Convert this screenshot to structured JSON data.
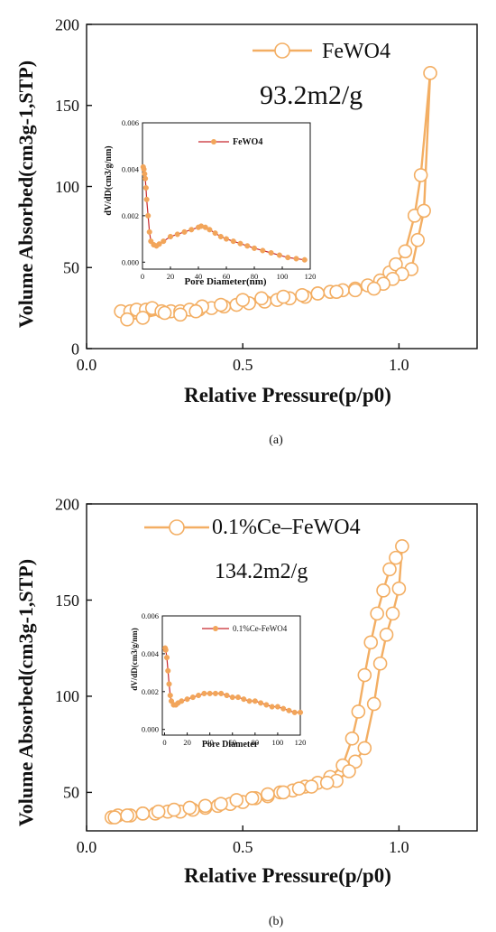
{
  "colors": {
    "series": "#F3AE63",
    "inset_line": "#C8282D",
    "inset_marker": "#F2A55A",
    "axis": "#111111"
  },
  "chart_data": [
    {
      "type": "line",
      "panel_label": "(a)",
      "xlabel": "Relative Pressure(p/p0)",
      "ylabel": "Volume Absorbed(cm3g-1,STP)",
      "xlim": [
        0.0,
        1.25
      ],
      "ylim": [
        0,
        200
      ],
      "xticks": [
        0.0,
        0.5,
        1.0
      ],
      "yticks": [
        0,
        50,
        100,
        150,
        200
      ],
      "xtick_labels": [
        "0.0",
        "0.5",
        "1.0"
      ],
      "ytick_labels": [
        "0",
        "50",
        "100",
        "150",
        "200"
      ],
      "legend": {
        "label": "FeWO4",
        "position": "top-right"
      },
      "annotation": "93.2m2/g",
      "series": [
        {
          "name": "FeWO4",
          "marker": "open-circle",
          "x": [
            0.11,
            0.14,
            0.16,
            0.19,
            0.21,
            0.24,
            0.27,
            0.3,
            0.33,
            0.36,
            0.4,
            0.44,
            0.48,
            0.52,
            0.57,
            0.61,
            0.65,
            0.7,
            0.74,
            0.78,
            0.82,
            0.86,
            0.9,
            0.94,
            0.97,
            0.99,
            1.02,
            1.05,
            1.07,
            1.1,
            1.08,
            1.06,
            1.04,
            1.01,
            0.98,
            0.95,
            0.92,
            0.86,
            0.8,
            0.74,
            0.69,
            0.63,
            0.56,
            0.5,
            0.43,
            0.37,
            0.35,
            0.3,
            0.25,
            0.18,
            0.13
          ],
          "y": [
            23,
            23,
            24,
            24,
            25,
            23,
            23,
            23,
            24,
            24,
            25,
            26,
            27,
            28,
            29,
            30,
            31,
            32,
            34,
            35,
            36,
            37,
            39,
            42,
            47,
            52,
            60,
            82,
            107,
            170,
            85,
            67,
            49,
            46,
            43,
            40,
            37,
            36,
            35,
            34,
            33,
            32,
            31,
            30,
            27,
            26,
            23,
            21,
            22,
            19,
            18
          ]
        }
      ],
      "inset": {
        "type": "line",
        "xlabel": "Pore Diameter(nm)",
        "ylabel": "dV/dD(cm3/g/nm)",
        "xlim": [
          0,
          120
        ],
        "ylim": [
          -0.0003,
          0.006
        ],
        "xticks": [
          0,
          20,
          40,
          60,
          80,
          100,
          120
        ],
        "yticks": [
          0.0,
          0.002,
          0.004,
          0.006
        ],
        "xtick_labels": [
          "0",
          "20",
          "40",
          "60",
          "80",
          "100",
          "120"
        ],
        "ytick_labels": [
          "0.000",
          "0.002",
          "0.004",
          "0.006"
        ],
        "legend": "FeWO4",
        "series": [
          {
            "name": "FeWO4",
            "x": [
              0.5,
              1,
              1.5,
              2,
              2.5,
              3,
              4,
              5,
              6,
              8,
              10,
              12,
              15,
              20,
              25,
              30,
              35,
              40,
              42,
              45,
              48,
              52,
              56,
              60,
              65,
              70,
              75,
              80,
              86,
              92,
              98,
              104,
              110,
              116
            ],
            "y": [
              0.0041,
              0.004,
              0.0038,
              0.0036,
              0.0032,
              0.0027,
              0.002,
              0.0013,
              0.0009,
              0.00075,
              0.0007,
              0.00078,
              0.0009,
              0.0011,
              0.0012,
              0.0013,
              0.0014,
              0.0015,
              0.00155,
              0.0015,
              0.0014,
              0.00125,
              0.0011,
              0.001,
              0.0009,
              0.0008,
              0.0007,
              0.0006,
              0.0005,
              0.0004,
              0.0003,
              0.0002,
              0.00015,
              0.0001
            ]
          }
        ]
      }
    },
    {
      "type": "line",
      "panel_label": "(b)",
      "xlabel": "Relative Pressure(p/p0)",
      "ylabel": "Volume Absorbed(cm3g-1,STP)",
      "xlim": [
        0.0,
        1.25
      ],
      "ylim": [
        30,
        200
      ],
      "xticks": [
        0.0,
        0.5,
        1.0
      ],
      "yticks": [
        50,
        100,
        150,
        200
      ],
      "xtick_labels": [
        "0.0",
        "0.5",
        "1.0"
      ],
      "ytick_labels": [
        "50",
        "100",
        "150",
        "200"
      ],
      "legend": {
        "label": "0.1%Ce–FeWO4",
        "position": "top-left"
      },
      "annotation": "134.2m2/g",
      "series": [
        {
          "name": "0.1%Ce–FeWO4",
          "marker": "open-circle",
          "x": [
            0.08,
            0.1,
            0.14,
            0.18,
            0.22,
            0.26,
            0.3,
            0.34,
            0.38,
            0.42,
            0.46,
            0.5,
            0.54,
            0.58,
            0.62,
            0.66,
            0.7,
            0.74,
            0.78,
            0.82,
            0.85,
            0.87,
            0.89,
            0.91,
            0.93,
            0.95,
            0.97,
            0.99,
            1.01,
            1.0,
            0.98,
            0.96,
            0.94,
            0.92,
            0.89,
            0.86,
            0.84,
            0.8,
            0.77,
            0.72,
            0.68,
            0.63,
            0.58,
            0.53,
            0.48,
            0.43,
            0.38,
            0.33,
            0.28,
            0.23,
            0.18,
            0.13,
            0.09
          ],
          "y": [
            37,
            38,
            38,
            39,
            39,
            40,
            40,
            41,
            42,
            43,
            44,
            45,
            47,
            48,
            50,
            51,
            53,
            55,
            58,
            64,
            78,
            92,
            111,
            128,
            143,
            155,
            166,
            172,
            178,
            156,
            143,
            132,
            117,
            96,
            73,
            66,
            61,
            56,
            55,
            53,
            52,
            50,
            49,
            47,
            46,
            44,
            43,
            42,
            41,
            40,
            39,
            38,
            37
          ]
        }
      ],
      "inset": {
        "type": "line",
        "xlabel": "Pore Diameter",
        "ylabel": "dV/dD(cm3/g/nm)",
        "xlim": [
          -2,
          120
        ],
        "ylim": [
          -0.0003,
          0.006
        ],
        "xticks": [
          0,
          20,
          40,
          60,
          80,
          100,
          120
        ],
        "yticks": [
          0.0,
          0.002,
          0.004,
          0.006
        ],
        "xtick_labels": [
          "0",
          "20",
          "40",
          "60",
          "80",
          "100",
          "120"
        ],
        "ytick_labels": [
          "0.000",
          "0.002",
          "0.004",
          "0.006"
        ],
        "legend": "0.1%Ce-FeWO4",
        "series": [
          {
            "name": "0.1%Ce-FeWO4",
            "x": [
              0.5,
              1,
              2,
              3,
              4,
              5,
              6,
              8,
              10,
              12,
              15,
              20,
              25,
              30,
              35,
              40,
              45,
              50,
              55,
              60,
              65,
              70,
              75,
              80,
              85,
              90,
              95,
              100,
              105,
              110,
              115,
              120
            ],
            "y": [
              0.0043,
              0.0042,
              0.0038,
              0.0031,
              0.0024,
              0.0018,
              0.0015,
              0.0013,
              0.0013,
              0.0014,
              0.0015,
              0.0016,
              0.0017,
              0.0018,
              0.0019,
              0.0019,
              0.0019,
              0.0019,
              0.0018,
              0.0017,
              0.0017,
              0.0016,
              0.0015,
              0.0015,
              0.0014,
              0.0013,
              0.0012,
              0.0012,
              0.0011,
              0.001,
              0.0009,
              0.0009
            ]
          }
        ]
      }
    }
  ]
}
